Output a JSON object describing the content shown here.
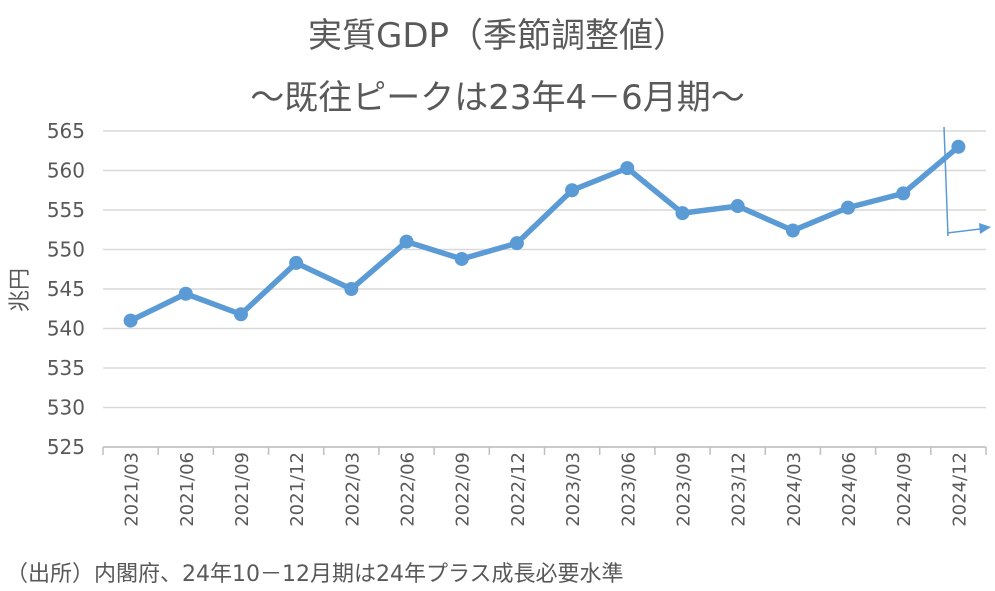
{
  "chart_data": {
    "type": "line",
    "title": "実質GDP（季節調整値）",
    "subtitle": "～既往ピークは23年4－6月期～",
    "ylabel": "兆円",
    "xlabel": "",
    "ylim": [
      525,
      565
    ],
    "yticks": [
      "565",
      "560",
      "555",
      "550",
      "545",
      "540",
      "535",
      "530",
      "525"
    ],
    "categories": [
      "2021/03",
      "2021/06",
      "2021/09",
      "2021/12",
      "2022/03",
      "2022/06",
      "2022/09",
      "2022/12",
      "2023/03",
      "2023/06",
      "2023/09",
      "2023/12",
      "2024/03",
      "2024/06",
      "2024/09",
      "2024/12"
    ],
    "series": [
      {
        "values": [
          541.0,
          544.4,
          541.8,
          548.3,
          545.0,
          551.0,
          548.8,
          550.8,
          557.5,
          560.3,
          554.6,
          555.5,
          552.4,
          555.3,
          557.1,
          563.0
        ]
      }
    ],
    "grid": true,
    "line_color": "#5B9BD5",
    "grid_color": "#d9d9d9",
    "annotation_color": "#5B9BD5"
  },
  "source_note": "（出所）内閣府、24年10－12月期は24年プラス成長必要水準"
}
